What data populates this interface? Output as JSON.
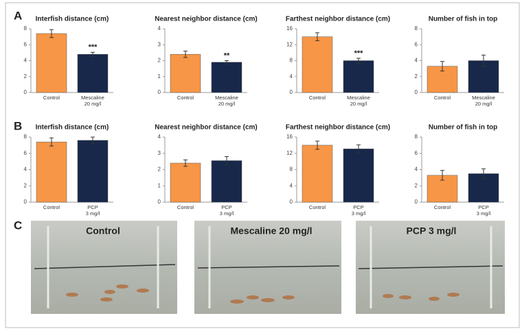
{
  "panels": [
    "A",
    "B",
    "C"
  ],
  "photos": [
    "Control",
    "Mescaline 20 mg/l",
    "PCP 3 mg/l"
  ],
  "chart_data": [
    {
      "type": "bar",
      "title": "Interfish distance (cm)",
      "categories": [
        [
          "Control"
        ],
        [
          "Mescaline",
          "20 mg/l"
        ]
      ],
      "values": [
        7.4,
        4.8
      ],
      "errors": [
        0.5,
        0.25
      ],
      "colors": [
        "#f79646",
        "#17284a"
      ],
      "ylim": [
        0,
        8
      ],
      "yticks": [
        0,
        2,
        4,
        6,
        8
      ],
      "annotation": "***"
    },
    {
      "type": "bar",
      "title": "Nearest neighbor distance (cm)",
      "categories": [
        [
          "Control"
        ],
        [
          "Mescaline",
          "20 mg/l"
        ]
      ],
      "values": [
        2.4,
        1.9
      ],
      "errors": [
        0.2,
        0.1
      ],
      "colors": [
        "#f79646",
        "#17284a"
      ],
      "ylim": [
        0,
        4
      ],
      "yticks": [
        0,
        1,
        2,
        3,
        4
      ],
      "annotation": "**"
    },
    {
      "type": "bar",
      "title": "Farthest neighbor distance (cm)",
      "categories": [
        [
          "Control"
        ],
        [
          "Mescaline",
          "20 mg/l"
        ]
      ],
      "values": [
        14,
        8
      ],
      "errors": [
        1,
        0.6
      ],
      "colors": [
        "#f79646",
        "#17284a"
      ],
      "ylim": [
        0,
        16
      ],
      "yticks": [
        0,
        4,
        8,
        12,
        16
      ],
      "annotation": "***"
    },
    {
      "type": "bar",
      "title": "Number of fish in top",
      "categories": [
        [
          "Control"
        ],
        [
          "Mescaline",
          "20 mg/l"
        ]
      ],
      "values": [
        3.3,
        4.0
      ],
      "errors": [
        0.6,
        0.7
      ],
      "colors": [
        "#f79646",
        "#17284a"
      ],
      "ylim": [
        0,
        8
      ],
      "yticks": [
        0,
        2,
        4,
        6,
        8
      ]
    },
    {
      "type": "bar",
      "title": "Interfish distance (cm)",
      "categories": [
        [
          "Control"
        ],
        [
          "PCP",
          "3 mg/l"
        ]
      ],
      "values": [
        7.4,
        7.6
      ],
      "errors": [
        0.5,
        0.4
      ],
      "colors": [
        "#f79646",
        "#17284a"
      ],
      "ylim": [
        0,
        8
      ],
      "yticks": [
        0,
        2,
        4,
        6,
        8
      ]
    },
    {
      "type": "bar",
      "title": "Nearest neighbor distance (cm)",
      "categories": [
        [
          "Control"
        ],
        [
          "PCP",
          "3 mg/l"
        ]
      ],
      "values": [
        2.4,
        2.55
      ],
      "errors": [
        0.2,
        0.25
      ],
      "colors": [
        "#f79646",
        "#17284a"
      ],
      "ylim": [
        0,
        4
      ],
      "yticks": [
        0,
        1,
        2,
        3,
        4
      ]
    },
    {
      "type": "bar",
      "title": "Farthest neighbor distance (cm)",
      "categories": [
        [
          "Control"
        ],
        [
          "PCP",
          "3 mg/l"
        ]
      ],
      "values": [
        14,
        13.1
      ],
      "errors": [
        1,
        1
      ],
      "colors": [
        "#f79646",
        "#17284a"
      ],
      "ylim": [
        0,
        16
      ],
      "yticks": [
        0,
        4,
        8,
        12,
        16
      ]
    },
    {
      "type": "bar",
      "title": "Number of fish in top",
      "categories": [
        [
          "Control"
        ],
        [
          "PCP",
          "3 mg/l"
        ]
      ],
      "values": [
        3.3,
        3.5
      ],
      "errors": [
        0.6,
        0.6
      ],
      "colors": [
        "#f79646",
        "#17284a"
      ],
      "ylim": [
        0,
        8
      ],
      "yticks": [
        0,
        2,
        4,
        6,
        8
      ]
    }
  ]
}
